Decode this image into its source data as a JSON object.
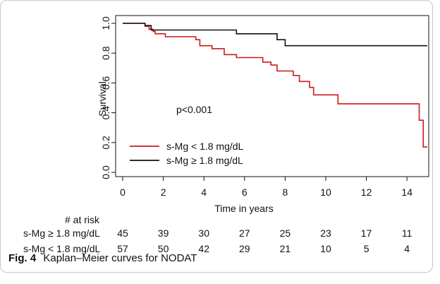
{
  "chart_data": {
    "type": "line",
    "xlabel": "Time in years",
    "ylabel": "Survival",
    "xlim": [
      0,
      15
    ],
    "ylim": [
      0,
      1.0
    ],
    "x_ticks": [
      "0",
      "2",
      "4",
      "6",
      "8",
      "10",
      "12",
      "14"
    ],
    "y_ticks": [
      "0.0",
      "0.2",
      "0.4",
      "0.6",
      "0.8",
      "1.0"
    ],
    "annotation": "p<0.001",
    "legend_position": "bottom-left",
    "series": [
      {
        "name": "s-Mg < 1.8 mg/dL",
        "color": "#cc1a1a",
        "points": [
          [
            0,
            1.0
          ],
          [
            1.1,
            1.0
          ],
          [
            1.1,
            0.98
          ],
          [
            1.3,
            0.98
          ],
          [
            1.3,
            0.96
          ],
          [
            1.5,
            0.96
          ],
          [
            1.5,
            0.945
          ],
          [
            1.6,
            0.945
          ],
          [
            1.6,
            0.93
          ],
          [
            2.1,
            0.93
          ],
          [
            2.1,
            0.91
          ],
          [
            3.6,
            0.91
          ],
          [
            3.6,
            0.89
          ],
          [
            3.8,
            0.89
          ],
          [
            3.8,
            0.85
          ],
          [
            4.4,
            0.85
          ],
          [
            4.4,
            0.83
          ],
          [
            5.0,
            0.83
          ],
          [
            5.0,
            0.79
          ],
          [
            5.6,
            0.79
          ],
          [
            5.6,
            0.77
          ],
          [
            6.9,
            0.77
          ],
          [
            6.9,
            0.74
          ],
          [
            7.3,
            0.74
          ],
          [
            7.3,
            0.72
          ],
          [
            7.6,
            0.72
          ],
          [
            7.6,
            0.68
          ],
          [
            8.4,
            0.68
          ],
          [
            8.4,
            0.65
          ],
          [
            8.7,
            0.65
          ],
          [
            8.7,
            0.61
          ],
          [
            9.2,
            0.61
          ],
          [
            9.2,
            0.57
          ],
          [
            9.4,
            0.57
          ],
          [
            9.4,
            0.52
          ],
          [
            10.6,
            0.52
          ],
          [
            10.6,
            0.46
          ],
          [
            14.6,
            0.46
          ],
          [
            14.6,
            0.35
          ],
          [
            14.8,
            0.35
          ],
          [
            14.8,
            0.17
          ],
          [
            15.0,
            0.17
          ]
        ]
      },
      {
        "name": "s-Mg ≥ 1.8 mg/dL",
        "color": "#111111",
        "points": [
          [
            0,
            1.0
          ],
          [
            1.1,
            1.0
          ],
          [
            1.1,
            0.985
          ],
          [
            1.4,
            0.985
          ],
          [
            1.4,
            0.955
          ],
          [
            5.6,
            0.955
          ],
          [
            5.6,
            0.93
          ],
          [
            7.6,
            0.93
          ],
          [
            7.6,
            0.89
          ],
          [
            8.0,
            0.89
          ],
          [
            8.0,
            0.85
          ],
          [
            15.0,
            0.85
          ]
        ]
      }
    ],
    "at_risk": {
      "heading": "# at risk",
      "times": [
        0,
        2,
        4,
        6,
        8,
        10,
        12,
        14
      ],
      "rows": [
        {
          "label": "s-Mg ≥ 1.8 mg/dL",
          "counts": [
            "45",
            "39",
            "30",
            "27",
            "25",
            "23",
            "17",
            "11"
          ]
        },
        {
          "label": "s-Mg < 1.8 mg/dL",
          "counts": [
            "57",
            "50",
            "42",
            "29",
            "21",
            "10",
            "5",
            "4"
          ]
        }
      ]
    }
  },
  "caption": {
    "fig_label": "Fig. 4",
    "text": "Kaplan–Meier curves for NODAT"
  }
}
